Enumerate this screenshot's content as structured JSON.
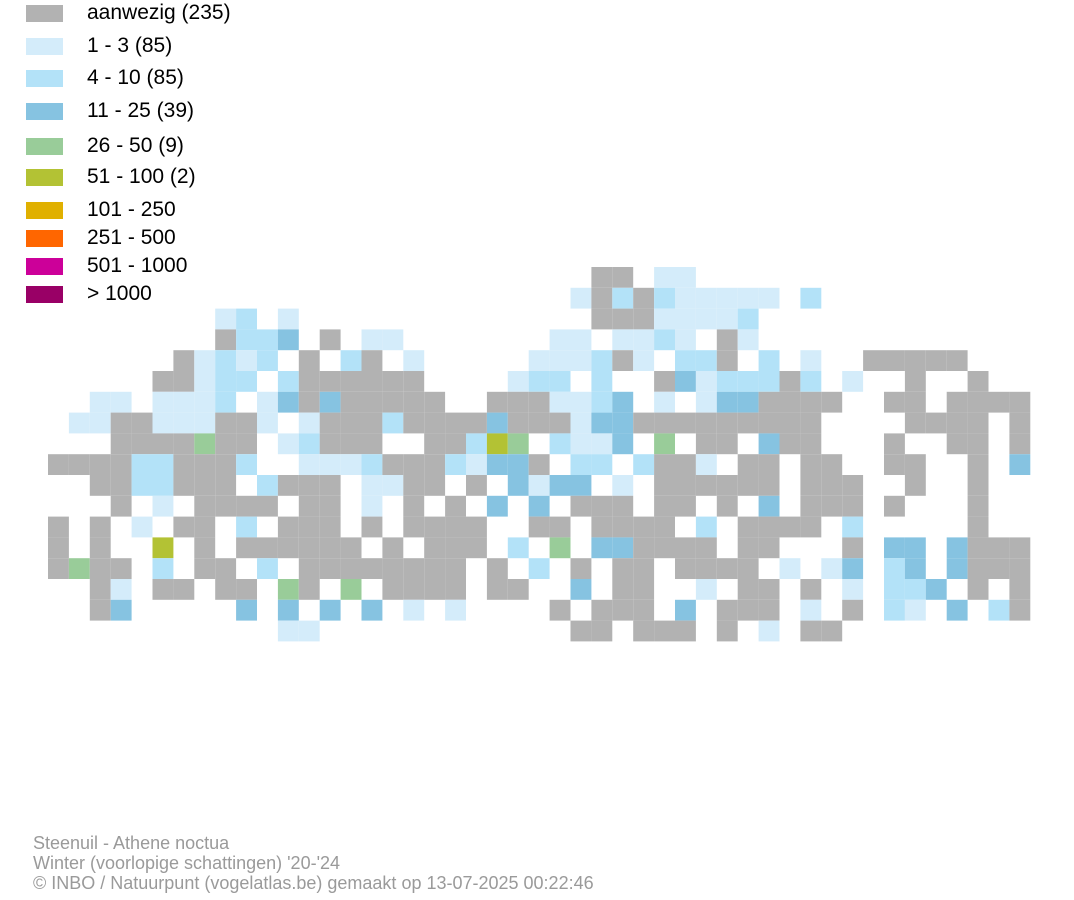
{
  "legend": {
    "items": [
      {
        "label": "aanwezig (235)",
        "color": "#b2b2b2"
      },
      {
        "label": "1 - 3 (85)",
        "color": "#d4ecfa"
      },
      {
        "label": "4 - 10 (85)",
        "color": "#b3e2f8"
      },
      {
        "label": "11 - 25 (39)",
        "color": "#86c3e1"
      },
      {
        "label": "26 - 50 (9)",
        "color": "#99cc99"
      },
      {
        "label": "51 - 100 (2)",
        "color": "#b3c234"
      },
      {
        "label": "101 - 250",
        "color": "#e0b000"
      },
      {
        "label": "251 - 500",
        "color": "#ff6600"
      },
      {
        "label": "501 - 1000",
        "color": "#cc0099"
      },
      {
        "label": "> 1000",
        "color": "#990066"
      }
    ]
  },
  "footer": {
    "lines": [
      "Steenuil - Athene noctua",
      "Winter (voorlopige schattingen) '20-'24",
      "© INBO / Natuurpunt (vogelatlas.be) gemaakt op 13-07-2025 00:22:46"
    ]
  }
}
